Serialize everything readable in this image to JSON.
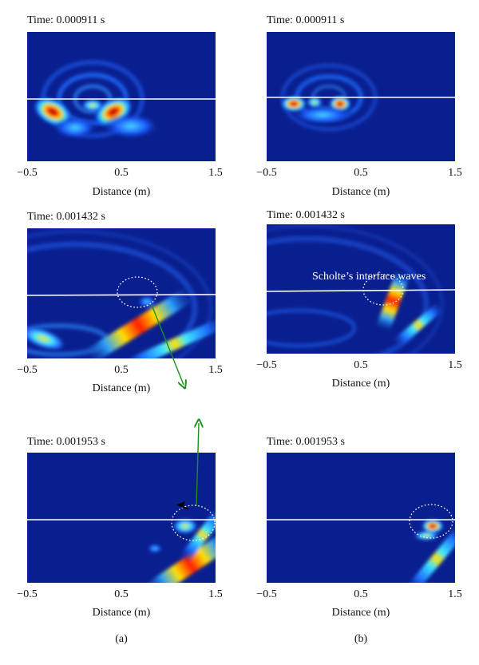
{
  "colors": {
    "background_blue": "#0a1f8f",
    "interface_line": "#ffffff",
    "arrow_green": "#1e8f1e",
    "arrow_black": "#000000",
    "annotation_white": "#ffffff"
  },
  "panels": [
    {
      "id": "a1",
      "time_label": "Time: 0.000911 s",
      "xticks": [
        "−0.5",
        "0.5",
        "1.5"
      ],
      "xlabel": "Distance (m)"
    },
    {
      "id": "b1",
      "time_label": "Time: 0.000911 s",
      "xticks": [
        "−0.5",
        "0.5",
        "1.5"
      ],
      "xlabel": "Distance (m)"
    },
    {
      "id": "a2",
      "time_label": "Time: 0.001432 s",
      "xticks": [
        "−0.5",
        "0.5",
        "1.5"
      ],
      "xlabel": "Distance (m)"
    },
    {
      "id": "b2",
      "time_label": "Time: 0.001432 s",
      "xticks": [
        "−0.5",
        "0.5",
        "1.5"
      ],
      "xlabel": "Distance (m)",
      "annotation": "Scholte’s interface waves"
    },
    {
      "id": "a3",
      "time_label": "Time: 0.001953 s",
      "xticks": [
        "−0.5",
        "0.5",
        "1.5"
      ],
      "xlabel": "Distance (m)"
    },
    {
      "id": "b3",
      "time_label": "Time: 0.001953 s",
      "xticks": [
        "−0.5",
        "0.5",
        "1.5"
      ],
      "xlabel": "Distance (m)"
    }
  ],
  "captions": {
    "left": "(a)",
    "right": "(b)"
  }
}
